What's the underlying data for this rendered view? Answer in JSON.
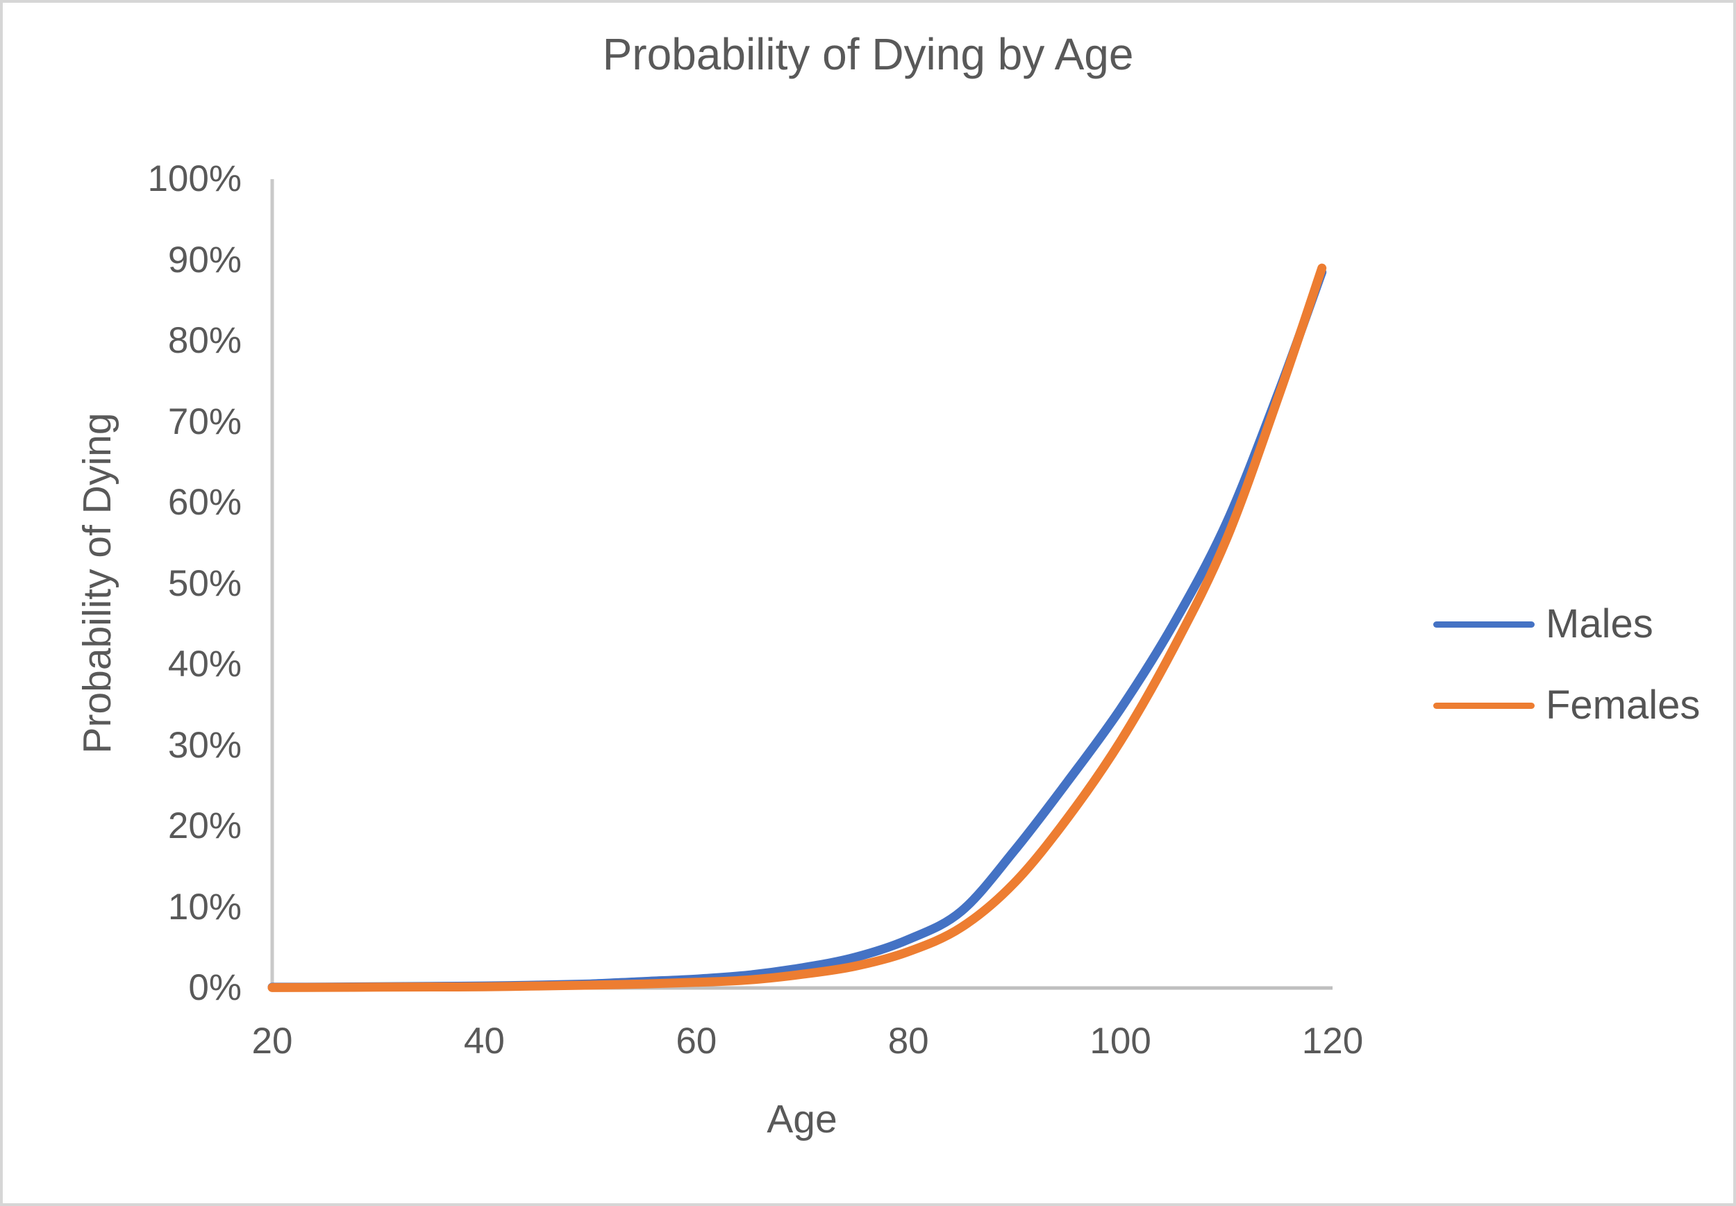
{
  "header": {
    "title": "Probability of Dying by Age"
  },
  "x_axis": {
    "label": "Age",
    "tick_labels": [
      "20",
      "40",
      "60",
      "80",
      "100",
      "120"
    ],
    "min": 20,
    "max": 120
  },
  "y_axis": {
    "label": "Probability of Dying",
    "tick_labels": [
      "0%",
      "10%",
      "20%",
      "30%",
      "40%",
      "50%",
      "60%",
      "70%",
      "80%",
      "90%",
      "100%"
    ],
    "min": 0,
    "max": 100
  },
  "legend": {
    "items": [
      {
        "label": "Males",
        "color": "#4472C4"
      },
      {
        "label": "Females",
        "color": "#ED7D31"
      }
    ]
  },
  "colors": {
    "males_line": "#4472C4",
    "females_line": "#ED7D31",
    "axis_line": "#BFBFBF",
    "y_axis_line": "#C9C9C9",
    "text": "#595959",
    "border": "#D6D6D6"
  },
  "chart_data": {
    "type": "line",
    "title": "Probability of Dying by Age",
    "xlabel": "Age",
    "ylabel": "Probability of Dying",
    "x": [
      20,
      25,
      30,
      35,
      40,
      45,
      50,
      55,
      60,
      65,
      70,
      75,
      80,
      85,
      90,
      95,
      100,
      105,
      110,
      115,
      119
    ],
    "series": [
      {
        "name": "Males",
        "color": "#4472C4",
        "values": [
          0.1,
          0.1,
          0.15,
          0.2,
          0.25,
          0.35,
          0.5,
          0.8,
          1.1,
          1.6,
          2.5,
          3.8,
          6,
          9.5,
          17,
          25.5,
          34.5,
          45,
          57.5,
          74,
          88.5
        ]
      },
      {
        "name": "Females",
        "color": "#ED7D31",
        "values": [
          0.05,
          0.08,
          0.1,
          0.13,
          0.15,
          0.25,
          0.35,
          0.5,
          0.7,
          1,
          1.7,
          2.7,
          4.5,
          7.5,
          13,
          21,
          30.5,
          42,
          55.5,
          73.5,
          89
        ]
      }
    ],
    "xlim": [
      20,
      120
    ],
    "ylim": [
      0,
      100
    ],
    "y_unit": "percent",
    "grid": false,
    "legend_position": "right"
  }
}
